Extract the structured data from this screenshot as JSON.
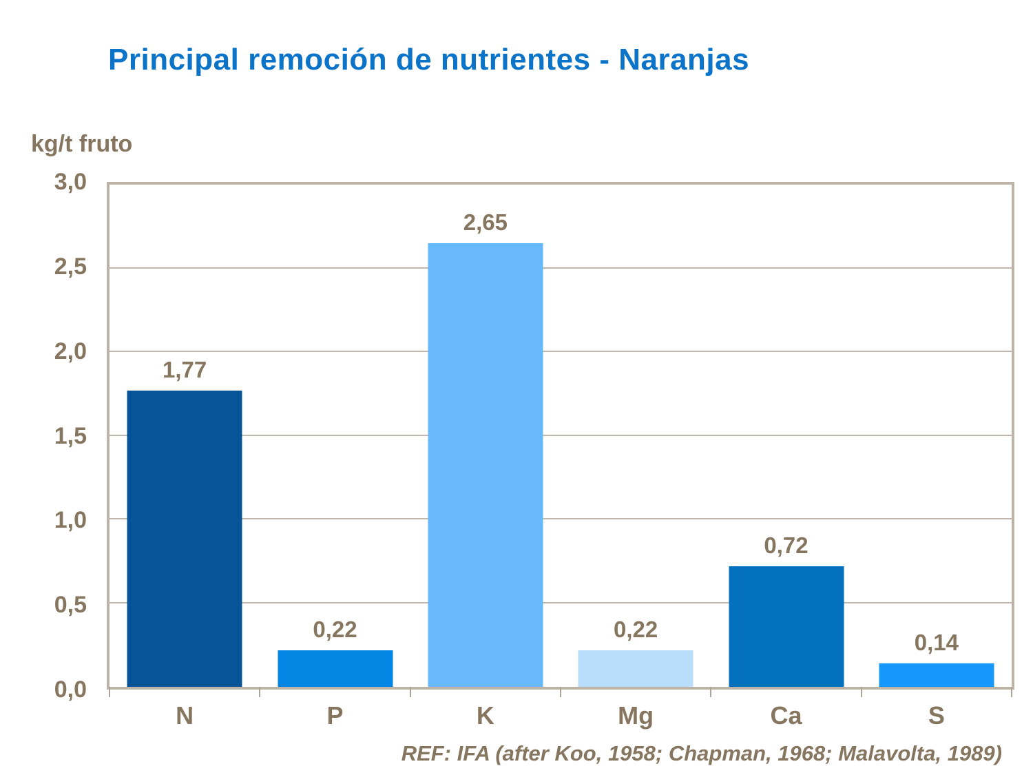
{
  "title": "Principal remoción de nutrientes - Naranjas",
  "y_axis_title": "kg/t fruto",
  "reference": "REF: IFA (after Koo, 1958; Chapman, 1968; Malavolta, 1989)",
  "colors": {
    "title_blue": "#0B73C8",
    "axis_text_brown": "#867660",
    "plot_border_tan": "#BEB3A7",
    "gridline_tan": "#C2B7AB",
    "background": "#FFFFFF"
  },
  "chart_data": {
    "type": "bar",
    "title": "Principal remoción de nutrientes - Naranjas",
    "xlabel": "",
    "ylabel": "kg/t fruto",
    "categories": [
      "N",
      "P",
      "K",
      "Mg",
      "Ca",
      "S"
    ],
    "values": [
      1.77,
      0.22,
      2.65,
      0.22,
      0.72,
      0.14
    ],
    "value_labels": [
      "1,77",
      "0,22",
      "2,65",
      "0,22",
      "0,72",
      "0,14"
    ],
    "bar_colors": [
      "#085499",
      "#0385E3",
      "#67B9FB",
      "#B8DDFB",
      "#0471BF",
      "#1598FA"
    ],
    "ylim": [
      0,
      3.0
    ],
    "ytick_step": 0.5,
    "ytick_labels": [
      "0,0",
      "0,5",
      "1,0",
      "1,5",
      "2,0",
      "2,5",
      "3,0"
    ],
    "grid": true,
    "legend": false,
    "bar_width_fraction": 0.765
  }
}
